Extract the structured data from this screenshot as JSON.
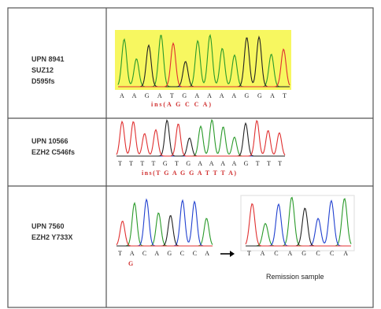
{
  "rows": [
    {
      "labels": [
        "UPN 8941",
        "SUZ12",
        "D595fs"
      ],
      "sequence": "A A G A T G A A A A G G A T",
      "annotation": "ins(A G C C A)"
    },
    {
      "labels": [
        "UPN 10566",
        "EZH2 C546fs"
      ],
      "sequence": "T T T T G T G A A A A G T T T",
      "annotation": "ins(T G A G G A T T T A)"
    },
    {
      "labels": [
        "UPN 7560",
        "EZH2 Y733X"
      ],
      "sequence": "T A C A G C C A",
      "annotation": "G",
      "remission_sequence": "T A C A G C C A",
      "remission_label": "Remission sample"
    }
  ]
}
